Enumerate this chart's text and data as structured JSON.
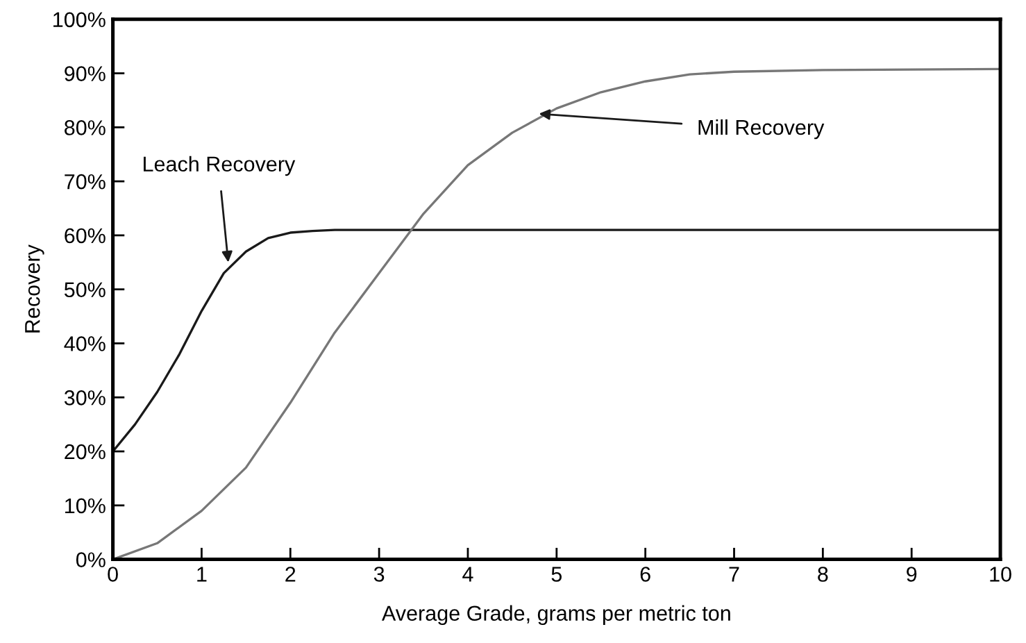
{
  "chart_data": {
    "type": "line",
    "xlabel": "Average Grade, grams per metric ton",
    "ylabel": "Recovery",
    "xlim": [
      0,
      10
    ],
    "xticks": [
      0,
      1,
      2,
      3,
      4,
      5,
      6,
      7,
      8,
      9,
      10
    ],
    "ylim": [
      0,
      100
    ],
    "yticks": [
      {
        "value": 0,
        "label": "0%"
      },
      {
        "value": 10,
        "label": "10%"
      },
      {
        "value": 20,
        "label": "20%"
      },
      {
        "value": 30,
        "label": "30%"
      },
      {
        "value": 40,
        "label": "40%"
      },
      {
        "value": 50,
        "label": "50%"
      },
      {
        "value": 60,
        "label": "60%"
      },
      {
        "value": 70,
        "label": "70%"
      },
      {
        "value": 80,
        "label": "80%"
      },
      {
        "value": 90,
        "label": "90%"
      },
      {
        "value": 100,
        "label": "100%"
      }
    ],
    "grid": false,
    "marker": "none",
    "line_style": "solid",
    "series": [
      {
        "color": "#1a1a1a",
        "x": [
          0,
          0.25,
          0.5,
          0.75,
          1.0,
          1.25,
          1.5,
          1.75,
          2.0,
          2.25,
          2.5,
          3,
          4,
          6,
          8,
          10
        ],
        "values": [
          20,
          25,
          31,
          38,
          46,
          53,
          57,
          59.5,
          60.5,
          60.8,
          61,
          61,
          61,
          61,
          61,
          61
        ]
      },
      {
        "color": "#777777",
        "x": [
          0,
          0.5,
          1.0,
          1.5,
          2.0,
          2.5,
          3.0,
          3.5,
          4.0,
          4.5,
          5.0,
          5.5,
          6.0,
          6.5,
          7.0,
          8.0,
          9.0,
          10
        ],
        "values": [
          0,
          3,
          9,
          17,
          29,
          42,
          53,
          64,
          73,
          79,
          83.5,
          86.5,
          88.5,
          89.8,
          90.3,
          90.6,
          90.7,
          90.8
        ]
      }
    ],
    "annotations": [
      {
        "text": "Leach Recovery",
        "x": 1.3,
        "y": 55
      },
      {
        "text": "Mill Recovery",
        "x": 4.8,
        "y": 82.5
      }
    ]
  }
}
